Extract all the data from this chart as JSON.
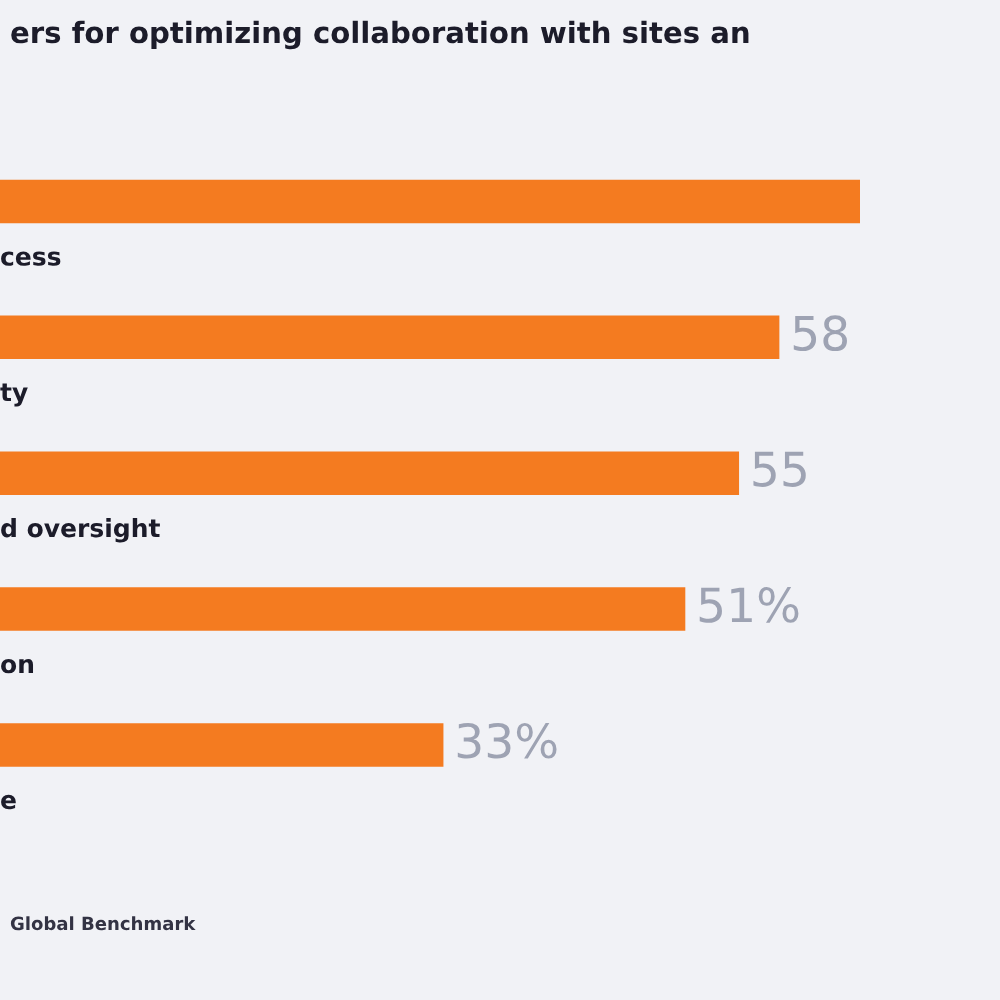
{
  "chart_data": {
    "type": "bar",
    "orientation": "horizontal",
    "title": "ers for optimizing collaboration with sites an",
    "categories": [
      "cess",
      "ty",
      "d oversight",
      "on",
      "e"
    ],
    "values": [
      64,
      58,
      55,
      51,
      33
    ],
    "value_labels": [
      null,
      "58",
      "55",
      "51%",
      "33%"
    ],
    "color": "#f47b20",
    "annotations": [
      "Global Benchmark"
    ]
  }
}
